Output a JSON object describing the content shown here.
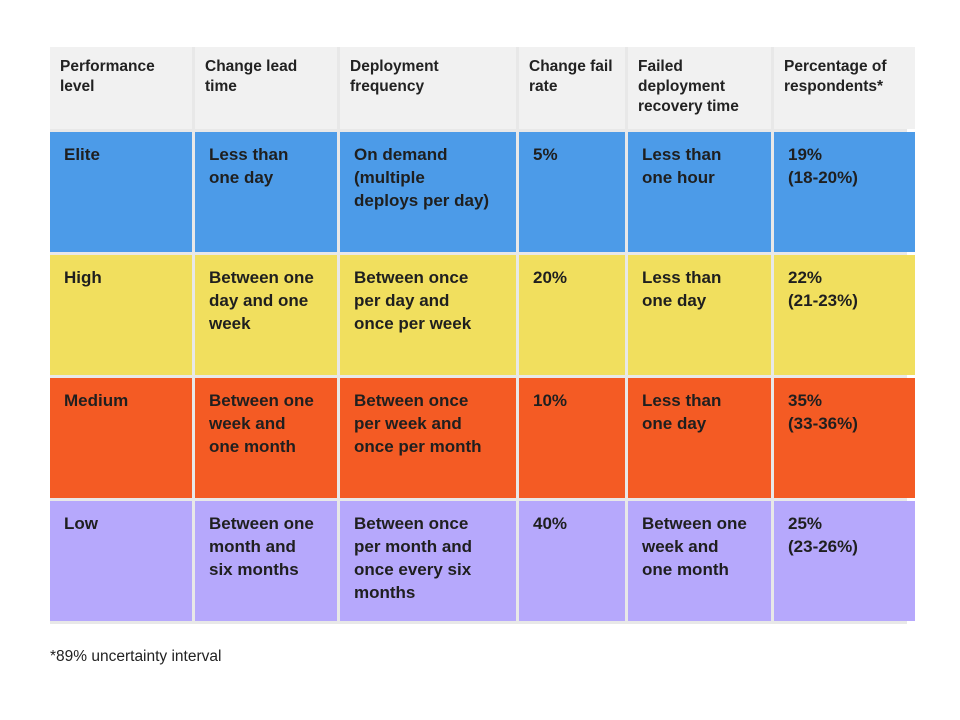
{
  "table": {
    "headers": [
      "Performance\nlevel",
      "Change lead\ntime",
      "Deployment\nfrequency",
      "Change fail\nrate",
      "Failed\ndeployment\nrecovery time",
      "Percentage of\nrespondents*"
    ],
    "rows": [
      {
        "level": "Elite",
        "lead_time": "Less than\none day",
        "frequency": "On demand\n(multiple\ndeploys per day)",
        "fail_rate": "5%",
        "recovery": "Less than\none hour",
        "percentage": "19%\n(18-20%)"
      },
      {
        "level": "High",
        "lead_time": "Between one\nday and one\nweek",
        "frequency": "Between once\nper day and\nonce per week",
        "fail_rate": "20%",
        "recovery": "Less than\none day",
        "percentage": "22%\n(21-23%)"
      },
      {
        "level": "Medium",
        "lead_time": "Between one\nweek and\none month",
        "frequency": "Between once\nper week and\nonce per month",
        "fail_rate": "10%",
        "recovery": "Less than\none day",
        "percentage": "35%\n(33-36%)"
      },
      {
        "level": "Low",
        "lead_time": "Between one\nmonth and\nsix months",
        "frequency": "Between once\nper month and\nonce every six\nmonths",
        "fail_rate": "40%",
        "recovery": "Between one\nweek and\none month",
        "percentage": "25%\n(23-26%)"
      }
    ]
  },
  "colors": {
    "elite": "#4c9be8",
    "high": "#f1df5e",
    "medium": "#f45b24",
    "low": "#b6a8fc",
    "header": "#f1f1f1"
  },
  "footnote": "*89% uncertainty interval"
}
